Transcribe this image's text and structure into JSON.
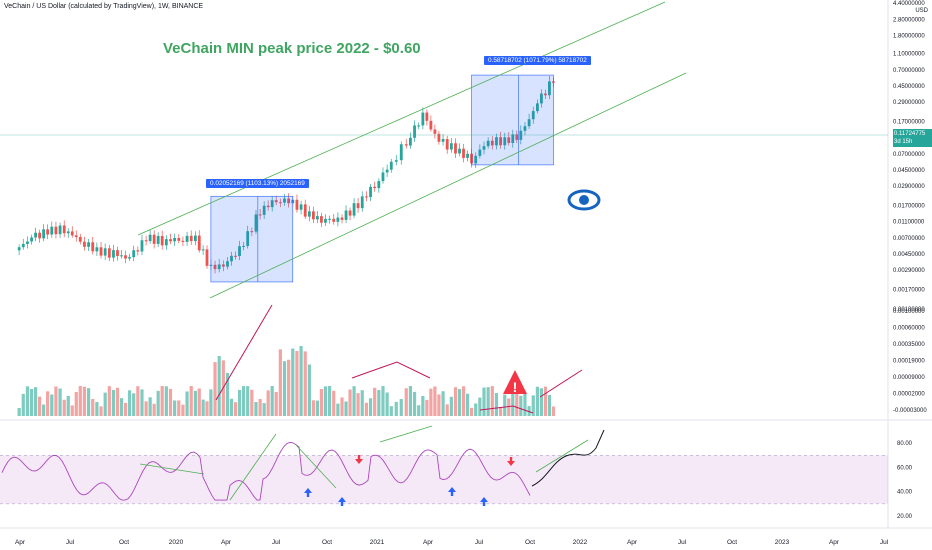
{
  "header": {
    "symbol_line": "VeChain / US Dollar (calculated by TradingView), 1W, BINANCE",
    "headline": "VeChain MIN peak price 2022 - $0.60"
  },
  "chart_data": [
    {
      "type": "candlestick",
      "panel": "price",
      "y_scale": "log",
      "currency_label": "USD",
      "y_ticks": [
        "4.40000000",
        "2.80000000",
        "1.80000000",
        "1.10000000",
        "0.70000000",
        "0.45000000",
        "0.29000000",
        "0.17000000",
        "0.07000000",
        "0.04500000",
        "0.02900000",
        "0.01700000",
        "0.01100000",
        "0.00700000",
        "0.00450000",
        "0.00290000",
        "0.00170000",
        "0.00100000"
      ],
      "current_price": "0.11724775",
      "countdown": "3d 15h",
      "measure_boxes": [
        {
          "label": "0.02052169 (1103.13%) 2052169",
          "from": "2020-03",
          "to": "2020-08",
          "low": 0.0021,
          "high": 0.022
        },
        {
          "label": "0.58718702 (1071.79%) 58718702",
          "from": "2021-07",
          "to": "2021-12",
          "low": 0.052,
          "high": 0.61
        }
      ],
      "channel": "ascending parallel channel",
      "close_series_approx": {
        "x": [
          "2019-03",
          "2019-04",
          "2019-05",
          "2019-06",
          "2019-07",
          "2019-08",
          "2019-09",
          "2019-10",
          "2019-11",
          "2019-12",
          "2020-01",
          "2020-02",
          "2020-03",
          "2020-04",
          "2020-05",
          "2020-06",
          "2020-07",
          "2020-08",
          "2020-09",
          "2020-10",
          "2020-11",
          "2020-12",
          "2021-01",
          "2021-02",
          "2021-03",
          "2021-04",
          "2021-05",
          "2021-06",
          "2021-07",
          "2021-08",
          "2021-09",
          "2021-10",
          "2021-11",
          "2021-12"
        ],
        "y": [
          0.005,
          0.007,
          0.0085,
          0.009,
          0.0065,
          0.005,
          0.0045,
          0.004,
          0.007,
          0.0065,
          0.0068,
          0.007,
          0.003,
          0.0035,
          0.006,
          0.015,
          0.02,
          0.019,
          0.013,
          0.011,
          0.012,
          0.018,
          0.03,
          0.055,
          0.1,
          0.2,
          0.1,
          0.08,
          0.06,
          0.1,
          0.1,
          0.12,
          0.28,
          0.55
        ]
      }
    },
    {
      "type": "bar",
      "panel": "volume",
      "y_ticks": [
        "0.00100000",
        "0.00060000",
        "0.00035000",
        "0.00019000",
        "0.00009000",
        "0.00002000",
        "-0.00003000"
      ],
      "colors": {
        "up": "#7fcbbf",
        "down": "#f4a3a3"
      }
    },
    {
      "type": "line",
      "panel": "rsi",
      "y_ticks": [
        "80.00",
        "60.00",
        "40.00",
        "20.00"
      ],
      "band": [
        30,
        70
      ],
      "line_color": "#ab47bc",
      "projection_color": "#131722"
    }
  ],
  "time_axis": [
    "Apr",
    "Jul",
    "Oct",
    "2020",
    "Apr",
    "Jul",
    "Oct",
    "2021",
    "Apr",
    "Jul",
    "Oct",
    "2022",
    "Apr",
    "Jul",
    "Oct",
    "2023",
    "Apr",
    "Jul"
  ],
  "colors": {
    "up": "#26a69a",
    "down": "#ef5350",
    "channel": "#4caf50",
    "box": "#2962ff",
    "headline": "#3fa561",
    "eye": "#1565c0",
    "warn": "#f23645"
  }
}
